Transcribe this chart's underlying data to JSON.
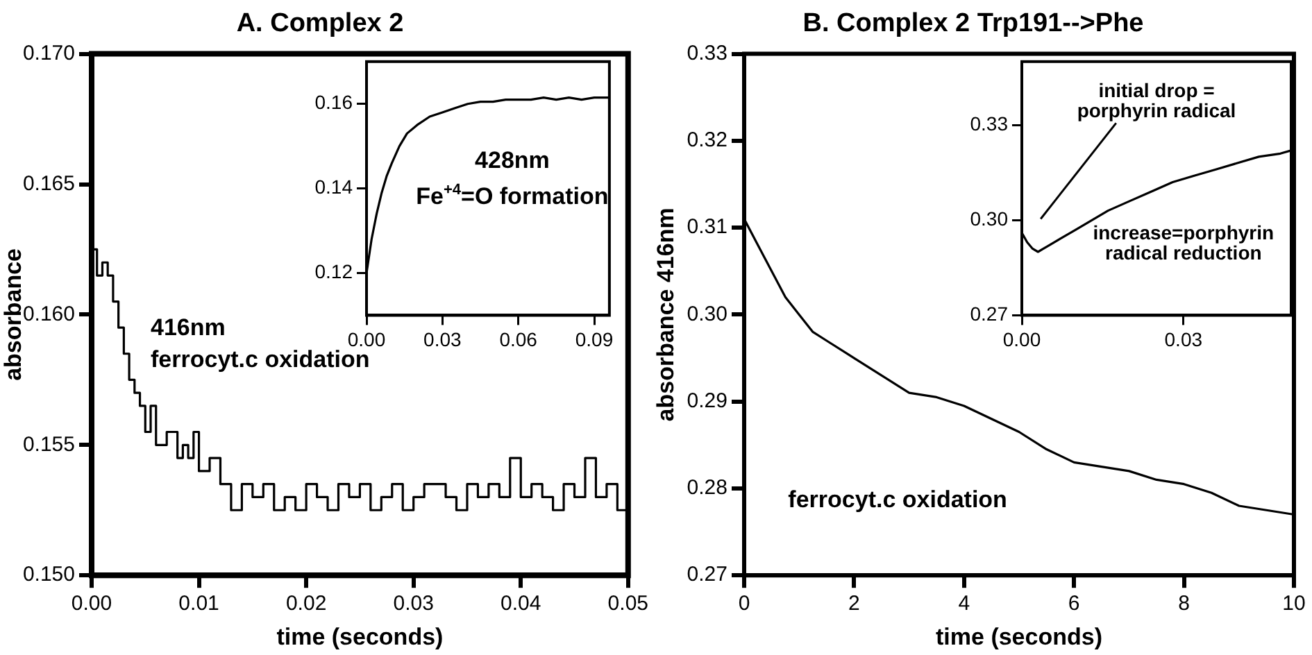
{
  "chart_data": [
    {
      "type": "step",
      "title": "A. Complex 2",
      "xlabel": "time (seconds)",
      "ylabel": "absorbance",
      "annotations": [
        "416nm",
        "ferrocyt.c oxidation"
      ],
      "x": [
        0,
        0.0005,
        0.001,
        0.0015,
        0.002,
        0.0025,
        0.003,
        0.0035,
        0.004,
        0.0045,
        0.005,
        0.0055,
        0.006,
        0.007,
        0.008,
        0.0085,
        0.009,
        0.0095,
        0.01,
        0.011,
        0.012,
        0.013,
        0.014,
        0.015,
        0.016,
        0.017,
        0.018,
        0.019,
        0.02,
        0.021,
        0.022,
        0.023,
        0.024,
        0.025,
        0.026,
        0.027,
        0.028,
        0.029,
        0.03,
        0.031,
        0.032,
        0.033,
        0.034,
        0.035,
        0.036,
        0.037,
        0.038,
        0.039,
        0.04,
        0.041,
        0.042,
        0.043,
        0.044,
        0.045,
        0.046,
        0.047,
        0.048,
        0.049,
        0.05
      ],
      "series": [
        {
          "color": "#000000",
          "values": [
            0.1625,
            0.1615,
            0.162,
            0.1615,
            0.1605,
            0.1595,
            0.1585,
            0.1575,
            0.157,
            0.1565,
            0.1555,
            0.1565,
            0.155,
            0.1555,
            0.1545,
            0.155,
            0.1545,
            0.1555,
            0.154,
            0.1545,
            0.1535,
            0.1525,
            0.1535,
            0.153,
            0.1535,
            0.1525,
            0.153,
            0.1525,
            0.1535,
            0.153,
            0.1525,
            0.1535,
            0.153,
            0.1535,
            0.1525,
            0.153,
            0.1535,
            0.1525,
            0.153,
            0.1535,
            0.1535,
            0.153,
            0.1525,
            0.1535,
            0.153,
            0.1535,
            0.153,
            0.1545,
            0.153,
            0.1535,
            0.153,
            0.1525,
            0.1535,
            0.153,
            0.1545,
            0.153,
            0.1535,
            0.1525,
            0.1535
          ]
        }
      ],
      "xlim": [
        0,
        0.05
      ],
      "xticks": [
        {
          "value": 0,
          "label": "0.00"
        },
        {
          "value": 0.01,
          "label": "0.01"
        },
        {
          "value": 0.02,
          "label": "0.02"
        },
        {
          "value": 0.03,
          "label": "0.03"
        },
        {
          "value": 0.04,
          "label": "0.04"
        },
        {
          "value": 0.05,
          "label": "0.05"
        }
      ],
      "ylim": [
        0.15,
        0.17
      ],
      "yticks": [
        {
          "value": 0.15,
          "label": "0.150"
        },
        {
          "value": 0.155,
          "label": "0.155"
        },
        {
          "value": 0.16,
          "label": "0.160"
        },
        {
          "value": 0.165,
          "label": "0.165"
        },
        {
          "value": 0.17,
          "label": "0.170"
        }
      ],
      "grid": false,
      "legend": false
    },
    {
      "type": "line",
      "annotations": [
        "428nm",
        "Fe$^{+4}$=O formation"
      ],
      "x": [
        0,
        0.002,
        0.004,
        0.006,
        0.008,
        0.01,
        0.013,
        0.016,
        0.02,
        0.025,
        0.03,
        0.035,
        0.04,
        0.045,
        0.05,
        0.055,
        0.06,
        0.065,
        0.07,
        0.075,
        0.08,
        0.085,
        0.09,
        0.096
      ],
      "series": [
        {
          "color": "#000000",
          "values": [
            0.12,
            0.128,
            0.134,
            0.139,
            0.143,
            0.146,
            0.15,
            0.153,
            0.155,
            0.157,
            0.158,
            0.159,
            0.16,
            0.1605,
            0.1605,
            0.161,
            0.161,
            0.161,
            0.1615,
            0.161,
            0.1615,
            0.161,
            0.1615,
            0.1615
          ]
        }
      ],
      "xlim": [
        0,
        0.096
      ],
      "xticks": [
        {
          "value": 0,
          "label": "0.00"
        },
        {
          "value": 0.03,
          "label": "0.03"
        },
        {
          "value": 0.06,
          "label": "0.06"
        },
        {
          "value": 0.09,
          "label": "0.09"
        }
      ],
      "ylim": [
        0.11,
        0.17
      ],
      "yticks": [
        0.12,
        0.14,
        0.16
      ],
      "grid": false,
      "legend": false
    },
    {
      "type": "line",
      "title": "B. Complex 2 Trp191-->Phe",
      "xlabel": "time (seconds)",
      "ylabel": "absorbance 416nm",
      "annotations": [
        "ferrocyt.c oxidation"
      ],
      "x": [
        0,
        0.25,
        0.5,
        0.75,
        1,
        1.25,
        1.5,
        2,
        2.5,
        3,
        3.5,
        4,
        4.5,
        5,
        5.5,
        6,
        6.5,
        7,
        7.5,
        8,
        8.5,
        9,
        9.5,
        10
      ],
      "series": [
        {
          "color": "#000000",
          "values": [
            0.311,
            0.308,
            0.305,
            0.302,
            0.3,
            0.298,
            0.297,
            0.295,
            0.293,
            0.291,
            0.2905,
            0.2895,
            0.288,
            0.2865,
            0.2845,
            0.283,
            0.2825,
            0.282,
            0.281,
            0.2805,
            0.2795,
            0.278,
            0.2775,
            0.277
          ]
        }
      ],
      "xlim": [
        0,
        10
      ],
      "xticks": [
        0,
        2,
        4,
        6,
        8,
        10
      ],
      "ylim": [
        0.27,
        0.33
      ],
      "yticks": [
        0.27,
        0.28,
        0.29,
        {
          "value": 0.3,
          "label": "0.30"
        },
        0.31,
        0.32,
        0.33
      ],
      "grid": false,
      "legend": false
    },
    {
      "type": "line",
      "annotations": [
        "initial drop =\nporphyrin radical",
        "increase=porphyrin\nradical reduction"
      ],
      "x": [
        0,
        0.001,
        0.002,
        0.003,
        0.004,
        0.005,
        0.007,
        0.01,
        0.013,
        0.016,
        0.02,
        0.024,
        0.028,
        0.032,
        0.036,
        0.04,
        0.044,
        0.048,
        0.05
      ],
      "series": [
        {
          "color": "#000000",
          "values": [
            0.296,
            0.293,
            0.291,
            0.29,
            0.291,
            0.292,
            0.294,
            0.297,
            0.3,
            0.303,
            0.306,
            0.309,
            0.312,
            0.314,
            0.316,
            0.318,
            0.32,
            0.321,
            0.322
          ]
        }
      ],
      "xlim": [
        0,
        0.05
      ],
      "xticks": [
        {
          "value": 0,
          "label": "0.00"
        },
        {
          "value": 0.03,
          "label": "0.03"
        }
      ],
      "ylim": [
        0.27,
        0.35
      ],
      "yticks": [
        0.27,
        {
          "value": 0.3,
          "label": "0.30"
        },
        0.33
      ],
      "grid": false,
      "legend": false
    }
  ]
}
